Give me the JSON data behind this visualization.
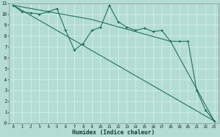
{
  "xlabel": "Humidex (Indice chaleur)",
  "bg_color": "#b2dcd4",
  "grid_color": "#d4eeea",
  "line_color": "#1a6b5a",
  "xlim": [
    -0.5,
    23.5
  ],
  "ylim": [
    0,
    11
  ],
  "xticks": [
    0,
    1,
    2,
    3,
    4,
    5,
    6,
    7,
    8,
    9,
    10,
    11,
    12,
    13,
    14,
    15,
    16,
    17,
    18,
    19,
    20,
    21,
    22,
    23
  ],
  "yticks": [
    0,
    1,
    2,
    3,
    4,
    5,
    6,
    7,
    8,
    9,
    10,
    11
  ],
  "series1_x": [
    0,
    1,
    2,
    3,
    4,
    5,
    6,
    7,
    8,
    9,
    10,
    11,
    12,
    13,
    14,
    15,
    16,
    17,
    18,
    19,
    20,
    21,
    22,
    23
  ],
  "series1_y": [
    10.8,
    10.2,
    10.1,
    10.0,
    10.2,
    10.5,
    8.5,
    6.7,
    7.3,
    8.5,
    8.8,
    10.8,
    9.3,
    8.8,
    8.5,
    8.7,
    8.4,
    8.5,
    7.5,
    7.5,
    7.5,
    3.0,
    1.2,
    0.2
  ],
  "series2_x": [
    0,
    23
  ],
  "series2_y": [
    10.8,
    0.2
  ],
  "series3_x": [
    0,
    9,
    18,
    23
  ],
  "series3_y": [
    10.8,
    9.5,
    7.5,
    0.2
  ]
}
